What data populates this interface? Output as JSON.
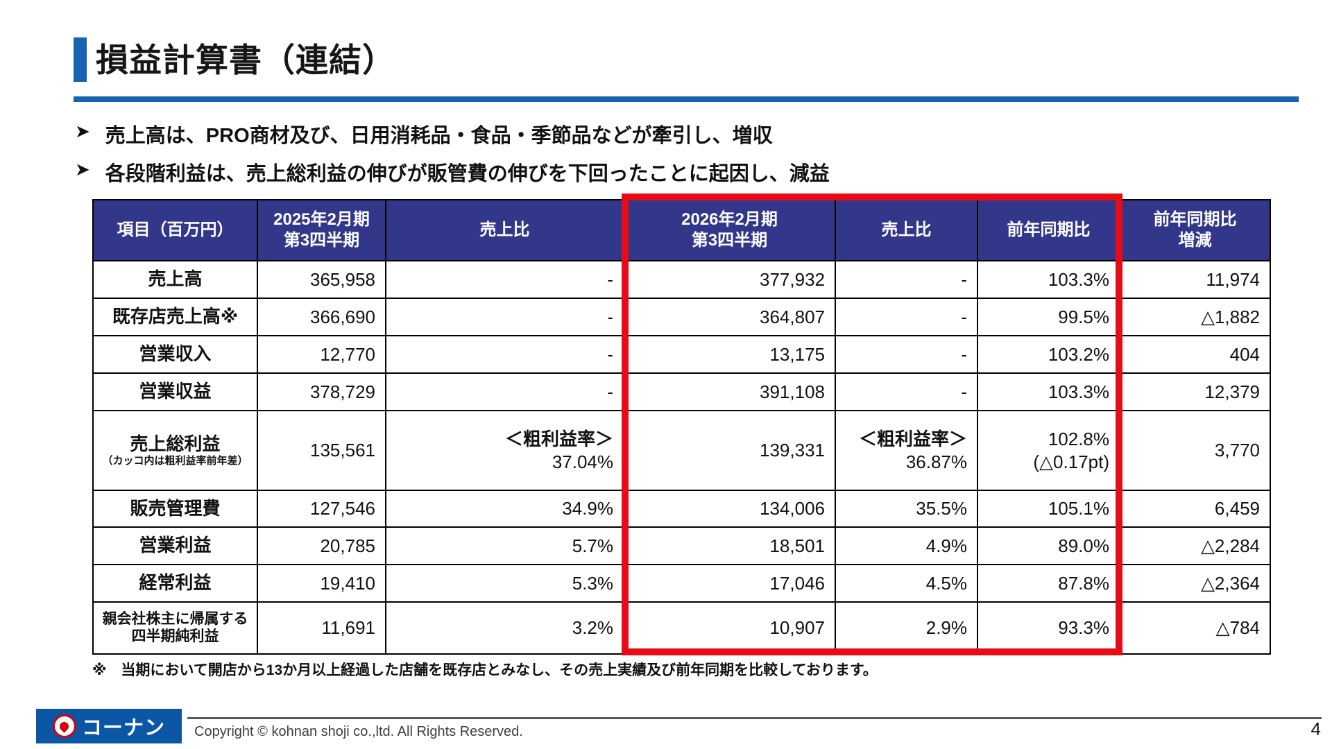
{
  "title": "損益計算書（連結）",
  "bullets": [
    "売上高は、PRO商材及び、日用消耗品・食品・季節品などが牽引し、増収",
    "各段階利益は、売上総利益の伸びが販管費の伸びを下回ったことに起因し、減益"
  ],
  "colors": {
    "accent_blue": "#1663B2",
    "table_header_bg": "#323789",
    "highlight_red": "#E60B16",
    "logo_blue": "#0B57A6",
    "logo_red": "#D6000F"
  },
  "table": {
    "headers": [
      "項目（百万円）",
      "2025年2月期\n第3四半期",
      "売上比",
      "2026年2月期\n第3四半期",
      "売上比",
      "前年同期比",
      "前年同期比\n増減"
    ],
    "rows": [
      {
        "label": [
          {
            "t": "売上高"
          }
        ],
        "cells": [
          [
            {
              "t": "365,958"
            }
          ],
          [
            {
              "t": "-"
            }
          ],
          [
            {
              "t": "377,932"
            }
          ],
          [
            {
              "t": "-"
            }
          ],
          [
            {
              "t": "103.3%"
            }
          ],
          [
            {
              "t": "11,974"
            }
          ]
        ]
      },
      {
        "label": [
          {
            "t": "既存店売上高※"
          }
        ],
        "cells": [
          [
            {
              "t": "366,690"
            }
          ],
          [
            {
              "t": "-"
            }
          ],
          [
            {
              "t": "364,807"
            }
          ],
          [
            {
              "t": "-"
            }
          ],
          [
            {
              "t": "99.5%"
            }
          ],
          [
            {
              "t": "△1,882"
            }
          ]
        ]
      },
      {
        "label": [
          {
            "t": "営業収入"
          }
        ],
        "cells": [
          [
            {
              "t": "12,770"
            }
          ],
          [
            {
              "t": "-"
            }
          ],
          [
            {
              "t": "13,175"
            }
          ],
          [
            {
              "t": "-"
            }
          ],
          [
            {
              "t": "103.2%"
            }
          ],
          [
            {
              "t": "404"
            }
          ]
        ]
      },
      {
        "label": [
          {
            "t": "営業収益"
          }
        ],
        "cells": [
          [
            {
              "t": "378,729"
            }
          ],
          [
            {
              "t": "-"
            }
          ],
          [
            {
              "t": "391,108"
            }
          ],
          [
            {
              "t": "-"
            }
          ],
          [
            {
              "t": "103.3%"
            }
          ],
          [
            {
              "t": "12,379"
            }
          ]
        ]
      },
      {
        "label": [
          {
            "t": "売上総利益"
          },
          {
            "t": "（カッコ内は粗利益率前年差）",
            "s": "sub"
          }
        ],
        "cells": [
          [
            {
              "t": "135,561"
            }
          ],
          [
            {
              "t": "＜粗利益率＞",
              "s": "b"
            },
            {
              "t": "37.04%"
            }
          ],
          [
            {
              "t": "139,331"
            }
          ],
          [
            {
              "t": "＜粗利益率＞",
              "s": "b"
            },
            {
              "t": "36.87%"
            }
          ],
          [
            {
              "t": "102.8%"
            },
            {
              "t": "(△0.17pt)"
            }
          ],
          [
            {
              "t": "3,770"
            }
          ]
        ]
      },
      {
        "label": [
          {
            "t": "販売管理費"
          }
        ],
        "cells": [
          [
            {
              "t": "127,546"
            }
          ],
          [
            {
              "t": "34.9%"
            }
          ],
          [
            {
              "t": "134,006"
            }
          ],
          [
            {
              "t": "35.5%"
            }
          ],
          [
            {
              "t": "105.1%"
            }
          ],
          [
            {
              "t": "6,459"
            }
          ]
        ]
      },
      {
        "label": [
          {
            "t": "営業利益"
          }
        ],
        "cells": [
          [
            {
              "t": "20,785"
            }
          ],
          [
            {
              "t": "5.7%"
            }
          ],
          [
            {
              "t": "18,501"
            }
          ],
          [
            {
              "t": "4.9%"
            }
          ],
          [
            {
              "t": "89.0%"
            }
          ],
          [
            {
              "t": "△2,284"
            }
          ]
        ]
      },
      {
        "label": [
          {
            "t": "経常利益"
          }
        ],
        "cells": [
          [
            {
              "t": "19,410"
            }
          ],
          [
            {
              "t": "5.3%"
            }
          ],
          [
            {
              "t": "17,046"
            }
          ],
          [
            {
              "t": "4.5%"
            }
          ],
          [
            {
              "t": "87.8%"
            }
          ],
          [
            {
              "t": "△2,364"
            }
          ]
        ]
      },
      {
        "label": [
          {
            "t": "親会社株主に帰属する",
            "s": "small"
          },
          {
            "t": "四半期純利益",
            "s": "small"
          }
        ],
        "cells": [
          [
            {
              "t": "11,691"
            }
          ],
          [
            {
              "t": "3.2%"
            }
          ],
          [
            {
              "t": "10,907"
            }
          ],
          [
            {
              "t": "2.9%"
            }
          ],
          [
            {
              "t": "93.3%"
            }
          ],
          [
            {
              "t": "△784"
            }
          ]
        ]
      }
    ]
  },
  "footnote": "※　当期において開店から13か月以上経過した店舗を既存店とみなし、その売上実績及び前年同期を比較しております。",
  "footer": {
    "logo_text": "コーナン",
    "copyright": "Copyright © kohnan shoji co.,ltd. All Rights Reserved.",
    "page_number": "4"
  }
}
